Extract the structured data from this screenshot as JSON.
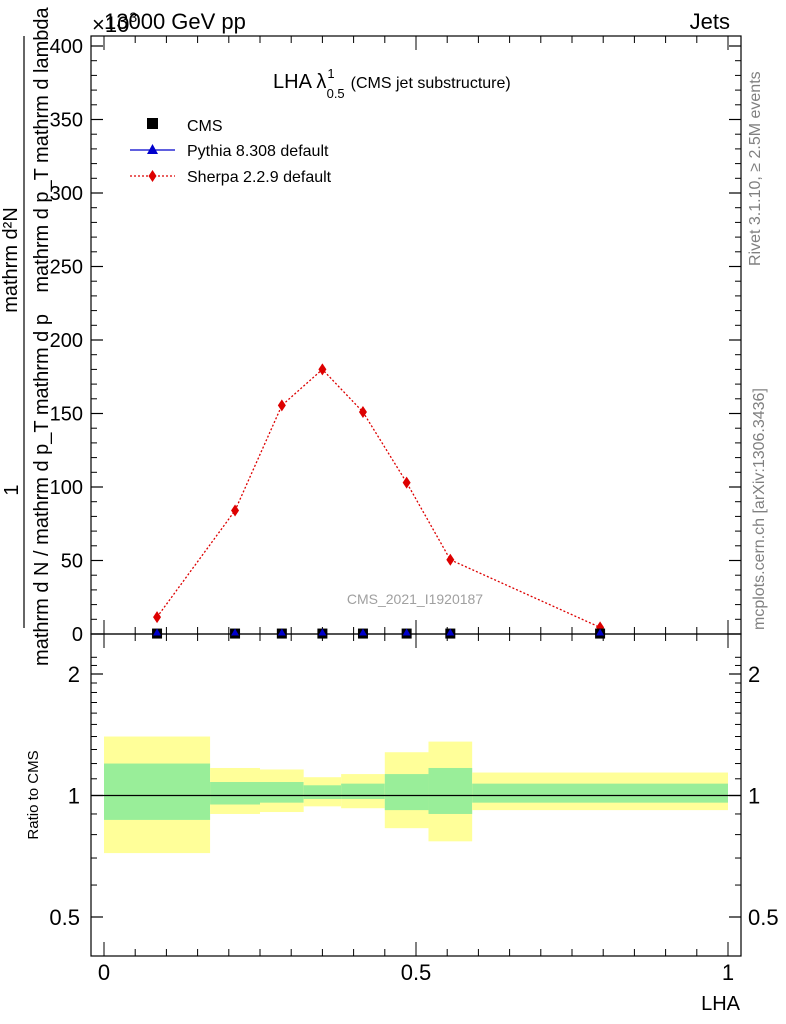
{
  "header": {
    "left": "13000 GeV pp",
    "right": "Jets",
    "exponent_base": "×10",
    "exponent_power": "3"
  },
  "side_text": {
    "rivet": "Rivet 3.1.10, ≥ 2.5M events",
    "mcplots": "mcplots.cern.ch [arXiv:1306.3436]"
  },
  "watermark": "CMS_2021_I1920187",
  "plot_title": {
    "main": "LHA λ",
    "sup": "1",
    "sub": "0.5",
    "suffix": "(CMS jet substructure)"
  },
  "ylabel": {
    "numerator": "1",
    "denominator": "mathrm d N / mathrm d p_T mathrm d p_T mathrm d lambda",
    "top": "mathrm d²N",
    "num_text": "1",
    "upper_line": "mathrm d²N",
    "upper_sub": "mathrm d p_T mathrm d lambda",
    "lower_line": "mathrm d N / mathrm d p_T mathrm d p",
    "upper_full": "mathrm d p_T mathrm d lambda",
    "label_top": "mathrm d²N",
    "label_top_under": "mathrm d p",
    "label_bottom": "mathrm d N / mathrm d p",
    "pt_sub": "T"
  },
  "legend": [
    {
      "label": "CMS",
      "color": "#000000",
      "marker": "square"
    },
    {
      "label": "Pythia 8.308 default",
      "color": "#0000cc",
      "marker": "triangle"
    },
    {
      "label": "Sherpa 2.2.9 default",
      "color": "#dd0000",
      "marker": "diamond"
    }
  ],
  "ratio_ylabel": "Ratio to CMS",
  "xlabel": "LHA",
  "colors": {
    "band_outer": "#ffff99",
    "band_inner": "#99ee99",
    "sherpa": "#dd0000",
    "pythia": "#0000cc",
    "cms": "#000000"
  },
  "chart_data": [
    {
      "type": "line",
      "panel": "main",
      "xlim": [
        0,
        1
      ],
      "ylim": [
        0,
        400000
      ],
      "y_scale_factor": 1000,
      "y_ticks": [
        0,
        50,
        100,
        150,
        200,
        250,
        300,
        350,
        400
      ],
      "x_ticks": [
        0,
        0.5,
        1
      ],
      "series": [
        {
          "name": "CMS",
          "x": [
            0.085,
            0.21,
            0.285,
            0.35,
            0.415,
            0.485,
            0.555,
            0.795
          ],
          "y": [
            0.3,
            0.3,
            0.3,
            0.3,
            0.3,
            0.3,
            0.3,
            0.3
          ]
        },
        {
          "name": "Pythia 8.308 default",
          "x": [
            0.085,
            0.21,
            0.285,
            0.35,
            0.415,
            0.485,
            0.555,
            0.795
          ],
          "y": [
            0.3,
            0.3,
            0.3,
            0.3,
            0.3,
            0.3,
            0.3,
            0.3
          ]
        },
        {
          "name": "Sherpa 2.2.9 default",
          "x": [
            0.085,
            0.21,
            0.285,
            0.35,
            0.415,
            0.485,
            0.555,
            0.795
          ],
          "y": [
            11.5,
            84,
            155.5,
            180,
            151,
            103,
            50.5,
            4.5
          ],
          "err": [
            1.5,
            2,
            3,
            3.5,
            3,
            2,
            1.5,
            1
          ]
        }
      ]
    },
    {
      "type": "area",
      "panel": "ratio",
      "ylabel": "Ratio to CMS",
      "xlabel": "LHA",
      "xlim": [
        0,
        1
      ],
      "ylim": [
        0.45,
        2.3
      ],
      "y_ticks": [
        0.5,
        1,
        2
      ],
      "x_ticks": [
        0,
        0.5,
        1
      ],
      "reference_line": 1,
      "bins": [
        {
          "x0": 0.0,
          "x1": 0.17,
          "inner": [
            0.87,
            1.2
          ],
          "outer": [
            0.72,
            1.4
          ]
        },
        {
          "x0": 0.17,
          "x1": 0.25,
          "inner": [
            0.95,
            1.08
          ],
          "outer": [
            0.9,
            1.17
          ]
        },
        {
          "x0": 0.25,
          "x1": 0.32,
          "inner": [
            0.96,
            1.08
          ],
          "outer": [
            0.91,
            1.16
          ]
        },
        {
          "x0": 0.32,
          "x1": 0.38,
          "inner": [
            0.98,
            1.06
          ],
          "outer": [
            0.94,
            1.11
          ]
        },
        {
          "x0": 0.38,
          "x1": 0.45,
          "inner": [
            0.98,
            1.07
          ],
          "outer": [
            0.93,
            1.13
          ]
        },
        {
          "x0": 0.45,
          "x1": 0.52,
          "inner": [
            0.92,
            1.13
          ],
          "outer": [
            0.83,
            1.28
          ]
        },
        {
          "x0": 0.52,
          "x1": 0.59,
          "inner": [
            0.9,
            1.17
          ],
          "outer": [
            0.77,
            1.36
          ]
        },
        {
          "x0": 0.59,
          "x1": 1.0,
          "inner": [
            0.96,
            1.07
          ],
          "outer": [
            0.92,
            1.14
          ]
        }
      ]
    }
  ]
}
